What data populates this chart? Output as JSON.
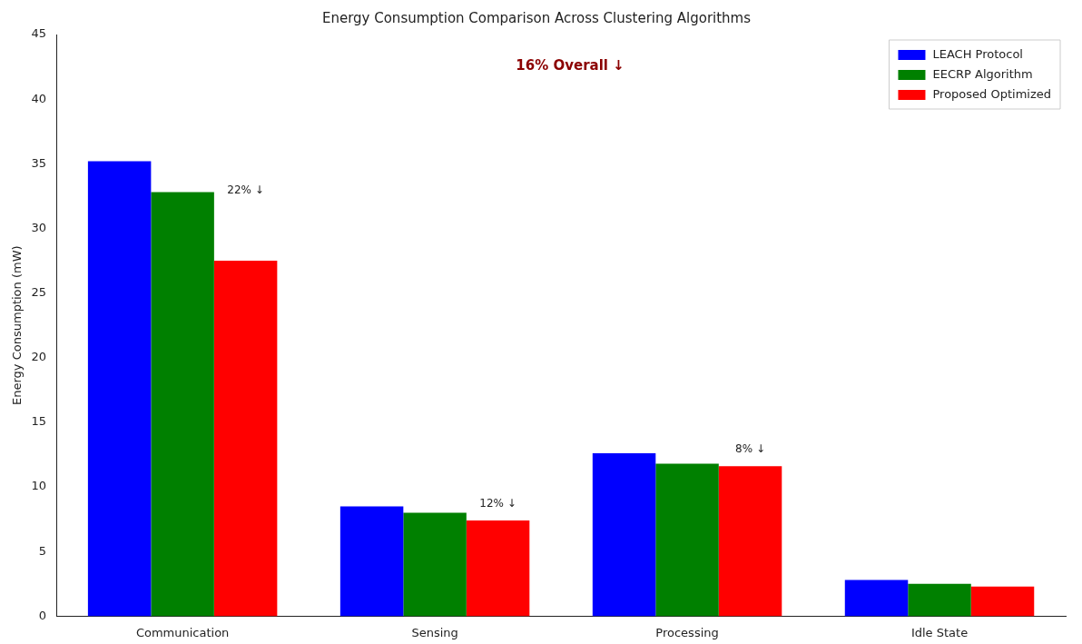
{
  "chart_data": {
    "type": "bar",
    "title": "Energy Consumption Comparison Across Clustering Algorithms",
    "ylabel": "Energy Consumption (mW)",
    "categories": [
      "Communication",
      "Sensing",
      "Processing",
      "Idle State"
    ],
    "series": [
      {
        "name": "LEACH Protocol",
        "color": "#0000ff",
        "values": [
          35.2,
          8.5,
          12.6,
          2.8
        ]
      },
      {
        "name": "EECRP Algorithm",
        "color": "#008000",
        "values": [
          32.8,
          8.0,
          11.8,
          2.5
        ]
      },
      {
        "name": "Proposed Optimized",
        "color": "#ff0000",
        "values": [
          27.5,
          7.4,
          11.6,
          2.3
        ]
      }
    ],
    "ylim": [
      0,
      45
    ],
    "yticks": [
      0,
      5,
      10,
      15,
      20,
      25,
      30,
      35,
      40,
      45
    ],
    "grid": false,
    "legend": "top right",
    "annotations": [
      "22% ↓",
      "12% ↓",
      "8% ↓",
      "16% Overall ↓"
    ]
  }
}
